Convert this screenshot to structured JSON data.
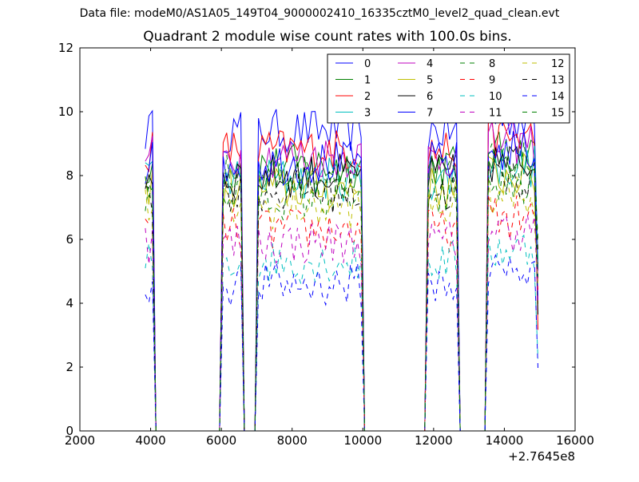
{
  "figure": {
    "suptitle": "Data file: modeM0/AS1A05_149T04_9000002410_16335cztM0_level2_quad_clean.evt",
    "title": "Quadrant 2 module wise count rates with 100.0s bins.",
    "x_offset_label": "+2.7645e8"
  },
  "chart_data": {
    "type": "line",
    "title": "Quadrant 2 module wise count rates with 100.0s bins.",
    "xlabel": "",
    "ylabel": "",
    "x_offset": "+2.7645e8",
    "xlim": [
      2000,
      16000
    ],
    "ylim": [
      0,
      12
    ],
    "xticks": [
      2000,
      4000,
      6000,
      8000,
      10000,
      12000,
      14000,
      16000
    ],
    "yticks": [
      0,
      2,
      4,
      6,
      8,
      10,
      12
    ],
    "grid": false,
    "legend": {
      "placement": "top-right",
      "columns": 4
    },
    "segments": [
      {
        "x_start": 3850,
        "x_end": 4050
      },
      {
        "x_start": 6050,
        "x_end": 6550
      },
      {
        "x_start": 7050,
        "x_end": 9950
      },
      {
        "x_start": 11850,
        "x_end": 12650
      },
      {
        "x_start": 13550,
        "x_end": 14950
      }
    ],
    "gap_level": 0,
    "series": [
      {
        "name": "0",
        "color": "#0000ff",
        "style": "solid",
        "level": 9.4
      },
      {
        "name": "1",
        "color": "#008000",
        "style": "solid",
        "level": 8.3
      },
      {
        "name": "2",
        "color": "#ff0000",
        "style": "solid",
        "level": 8.8
      },
      {
        "name": "3",
        "color": "#00bfbf",
        "style": "solid",
        "level": 7.9
      },
      {
        "name": "4",
        "color": "#bf00bf",
        "style": "solid",
        "level": 8.6
      },
      {
        "name": "5",
        "color": "#bfbf00",
        "style": "solid",
        "level": 7.6
      },
      {
        "name": "6",
        "color": "#000000",
        "style": "solid",
        "level": 8.0
      },
      {
        "name": "7",
        "color": "#0000ff",
        "style": "solid",
        "level": 8.4
      },
      {
        "name": "8",
        "color": "#008000",
        "style": "dashed",
        "level": 7.3
      },
      {
        "name": "9",
        "color": "#ff0000",
        "style": "dashed",
        "level": 6.3
      },
      {
        "name": "10",
        "color": "#00bfbf",
        "style": "dashed",
        "level": 5.3
      },
      {
        "name": "11",
        "color": "#bf00bf",
        "style": "dashed",
        "level": 5.9
      },
      {
        "name": "12",
        "color": "#bfbf00",
        "style": "dashed",
        "level": 7.0
      },
      {
        "name": "13",
        "color": "#000000",
        "style": "dashed",
        "level": 7.5
      },
      {
        "name": "14",
        "color": "#0000ff",
        "style": "dashed",
        "level": 4.6
      },
      {
        "name": "15",
        "color": "#008000",
        "style": "dashed",
        "level": 8.0
      }
    ]
  }
}
